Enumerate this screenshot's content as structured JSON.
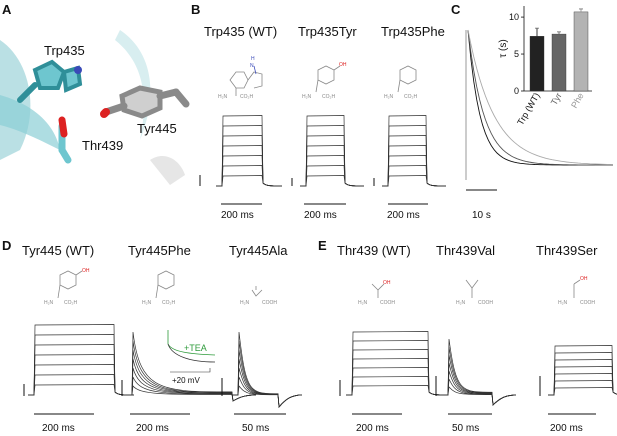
{
  "panels": {
    "A": {
      "letter": "A",
      "labels": [
        "Trp435",
        "Thr439",
        "Tyr445"
      ]
    },
    "B": {
      "letter": "B",
      "titles": [
        "Trp435 (WT)",
        "Trp435Tyr",
        "Trp435Phe"
      ],
      "scale": [
        "200 ms",
        "200 ms",
        "200 ms"
      ]
    },
    "C": {
      "letter": "C",
      "scale": "10 s"
    },
    "D": {
      "letter": "D",
      "titles": [
        "Tyr445 (WT)",
        "Tyr445Phe",
        "Tyr445Ala"
      ],
      "scale": [
        "200 ms",
        "200 ms",
        "50 ms"
      ],
      "inset_label": "+TEA",
      "inset_voltage": "+20 mV"
    },
    "E": {
      "letter": "E",
      "titles": [
        "Thr439 (WT)",
        "Thr439Val",
        "Thr439Ser"
      ],
      "scale": [
        "200 ms",
        "50 ms",
        "200 ms"
      ]
    }
  },
  "chem": {
    "h2n": "H₂N",
    "nh2": "NH₂",
    "co2h": "CO₂H",
    "cooh": "COOH",
    "oh": "OH",
    "h": "H",
    "n": "N"
  },
  "chart_data": {
    "type": "bar",
    "categories": [
      "Trp (WT)",
      "Tyr",
      "Phe"
    ],
    "values": [
      7.4,
      7.7,
      10.7
    ],
    "errors": [
      1.1,
      0.3,
      0.4
    ],
    "colors": [
      "#222222",
      "#666666",
      "#b3b3b3"
    ],
    "ylabel": "τ (s)",
    "yticks": [
      0,
      5,
      10
    ],
    "ylim": [
      0,
      11.5
    ]
  }
}
